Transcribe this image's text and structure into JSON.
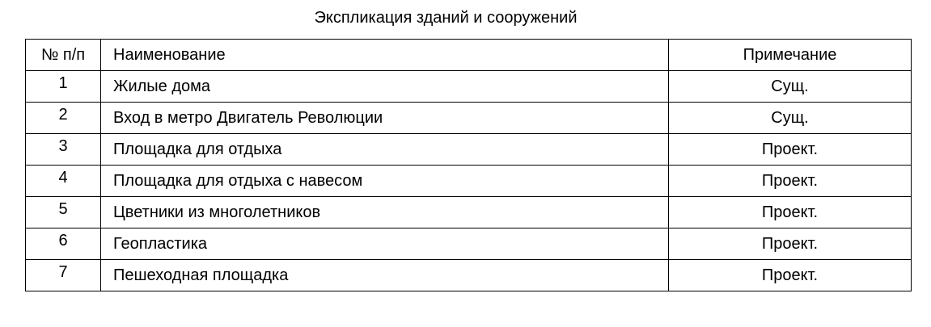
{
  "title": "Экспликация зданий и сооружений",
  "headers": [
    "№ п/п",
    "Наименование",
    "Примечание"
  ],
  "rows": [
    {
      "num": "1",
      "name": "Жилые дома",
      "note": "Сущ."
    },
    {
      "num": "2",
      "name": "Вход в метро Двигатель Революции",
      "note": "Сущ."
    },
    {
      "num": "3",
      "name": "Площадка для отдыха",
      "note": "Проект."
    },
    {
      "num": "4",
      "name": "Площадка для отдыха с навесом",
      "note": "Проект."
    },
    {
      "num": "5",
      "name": "Цветники из многолетников",
      "note": "Проект."
    },
    {
      "num": "6",
      "name": "Геопластика",
      "note": "Проект."
    },
    {
      "num": "7",
      "name": "Пешеходная площадка",
      "note": "Проект."
    }
  ]
}
